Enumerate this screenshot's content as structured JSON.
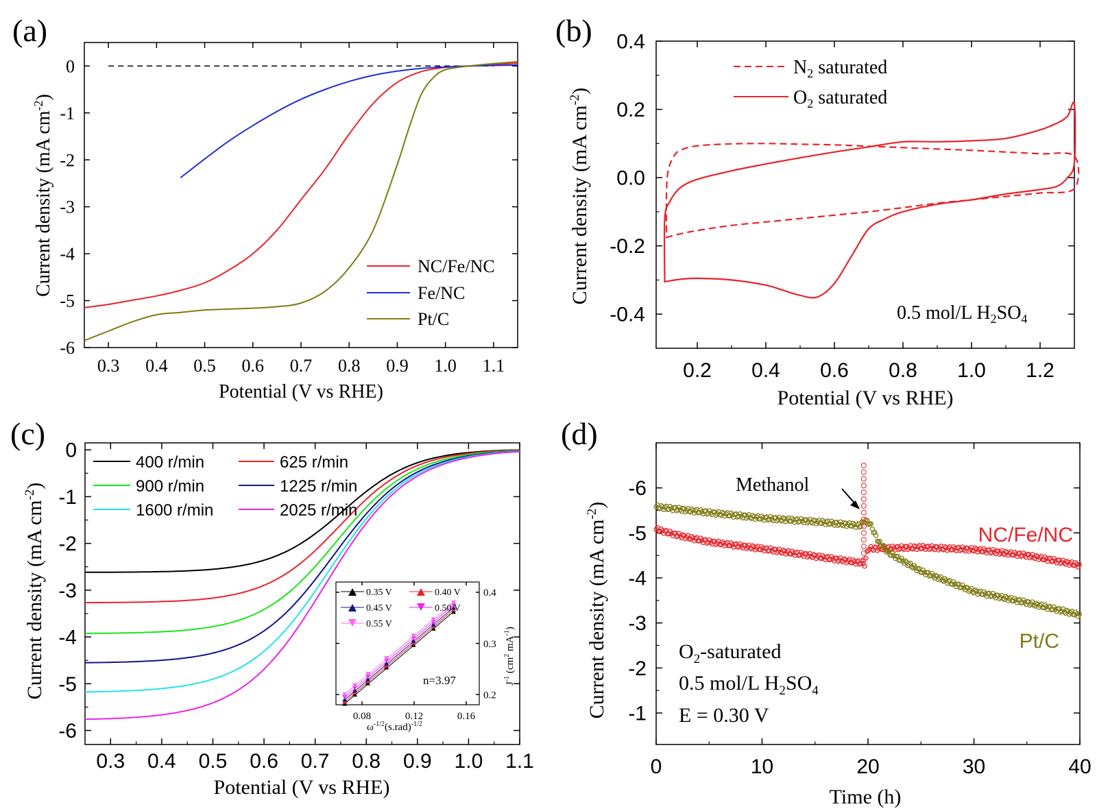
{
  "colors": {
    "ncfenc": "#e8232a",
    "fenc": "#1f2fd6",
    "ptc": "#7f7a14",
    "black": "#000000",
    "green": "#19e619",
    "navy": "#14148c",
    "cyan": "#22e3e8",
    "magenta": "#ee22ee",
    "red": "#e8232a",
    "pink": "#ff66ff"
  },
  "chart_data": [
    {
      "panel": "a",
      "panel_label": "(a)",
      "type": "line",
      "xlabel": "Potential (V vs RHE)",
      "ylabel": "Current density (mA cm",
      "ylabel_sup": "-2",
      "ylabel_close": ")",
      "xlim": [
        0.25,
        1.15
      ],
      "ylim": [
        -6,
        0.5
      ],
      "xticks": [
        0.3,
        0.4,
        0.5,
        0.6,
        0.7,
        0.8,
        0.9,
        1.0,
        1.1
      ],
      "xtick_labels": [
        "0.3",
        "0.4",
        "0.5",
        "0.6",
        "0.7",
        "0.8",
        "0.9",
        "1.0",
        "1.1"
      ],
      "yticks": [
        0,
        -1,
        -2,
        -3,
        -4,
        -5,
        -6
      ],
      "ytick_labels": [
        "0",
        "-1",
        "-2",
        "-3",
        "-4",
        "-5",
        "-6"
      ],
      "reference_line": {
        "y": 0,
        "x_range": [
          0.3,
          1.1
        ],
        "style": "dashed"
      },
      "legend_position": "bottom-right",
      "series": [
        {
          "name": "NC/Fe/NC",
          "color_key": "ncfenc",
          "x": [
            0.25,
            0.3,
            0.35,
            0.4,
            0.45,
            0.5,
            0.55,
            0.6,
            0.65,
            0.7,
            0.75,
            0.8,
            0.85,
            0.9,
            0.95,
            1.0,
            1.05,
            1.1,
            1.15
          ],
          "y": [
            -5.15,
            -5.08,
            -4.99,
            -4.9,
            -4.78,
            -4.62,
            -4.35,
            -4.0,
            -3.5,
            -2.85,
            -2.2,
            -1.45,
            -0.8,
            -0.35,
            -0.12,
            -0.03,
            0.0,
            0.03,
            0.06
          ]
        },
        {
          "name": "Fe/NC",
          "color_key": "fenc",
          "x": [
            0.45,
            0.5,
            0.55,
            0.6,
            0.65,
            0.7,
            0.75,
            0.8,
            0.85,
            0.9,
            0.95,
            1.0,
            1.05,
            1.1,
            1.15
          ],
          "y": [
            -2.38,
            -1.98,
            -1.6,
            -1.27,
            -0.97,
            -0.71,
            -0.5,
            -0.33,
            -0.2,
            -0.11,
            -0.05,
            -0.02,
            0.0,
            0.01,
            0.02
          ]
        },
        {
          "name": "Pt/C",
          "color_key": "ptc",
          "x": [
            0.25,
            0.3,
            0.35,
            0.4,
            0.45,
            0.5,
            0.55,
            0.6,
            0.65,
            0.7,
            0.75,
            0.8,
            0.85,
            0.9,
            0.925,
            0.95,
            0.975,
            1.0,
            1.05,
            1.1,
            1.15
          ],
          "y": [
            -5.85,
            -5.65,
            -5.45,
            -5.3,
            -5.25,
            -5.2,
            -5.18,
            -5.16,
            -5.13,
            -5.05,
            -4.8,
            -4.3,
            -3.5,
            -2.1,
            -1.3,
            -0.6,
            -0.25,
            -0.08,
            0.0,
            0.05,
            0.09
          ]
        }
      ]
    },
    {
      "panel": "b",
      "panel_label": "(b)",
      "type": "line",
      "xlabel": "Potential (V vs RHE)",
      "ylabel": "Current density (mA cm",
      "ylabel_sup": "-2",
      "ylabel_close": ")",
      "xlim": [
        0.08,
        1.3
      ],
      "ylim": [
        -0.5,
        0.4
      ],
      "xticks": [
        0.2,
        0.4,
        0.6,
        0.8,
        1.0,
        1.2
      ],
      "xtick_labels": [
        "0.2",
        "0.4",
        "0.6",
        "0.8",
        "1.0",
        "1.2"
      ],
      "yticks": [
        0.4,
        0.2,
        0.0,
        -0.2,
        -0.4
      ],
      "ytick_labels": [
        "0.4",
        "0.2",
        "0.0",
        "-0.2",
        "-0.4"
      ],
      "legend_position": "top-left",
      "annotation": {
        "text": "0.5 mol/L H",
        "sub1": "2",
        "mid": "SO",
        "sub2": "4"
      },
      "series": [
        {
          "name": "N",
          "name_sub": "2",
          "name_rest": " saturated",
          "style": "dashed",
          "color_key": "red",
          "x": [
            0.11,
            0.11,
            0.115,
            0.13,
            0.15,
            0.2,
            0.3,
            0.4,
            0.5,
            0.6,
            0.7,
            0.8,
            0.9,
            1.0,
            1.1,
            1.2,
            1.3,
            1.3,
            1.2,
            1.1,
            1.0,
            0.9,
            0.8,
            0.7,
            0.6,
            0.5,
            0.4,
            0.3,
            0.2,
            0.15,
            0.11
          ],
          "y": [
            -0.16,
            -0.05,
            0.02,
            0.06,
            0.08,
            0.093,
            0.099,
            0.1,
            0.098,
            0.096,
            0.092,
            0.088,
            0.084,
            0.08,
            0.075,
            0.07,
            0.063,
            -0.032,
            -0.045,
            -0.055,
            -0.065,
            -0.075,
            -0.088,
            -0.1,
            -0.11,
            -0.12,
            -0.13,
            -0.14,
            -0.155,
            -0.165,
            -0.175
          ]
        },
        {
          "name": "O",
          "name_sub": "2",
          "name_rest": " saturated",
          "style": "solid",
          "color_key": "red",
          "x": [
            0.105,
            0.105,
            0.12,
            0.15,
            0.2,
            0.3,
            0.4,
            0.5,
            0.6,
            0.7,
            0.8,
            0.9,
            1.0,
            1.1,
            1.2,
            1.25,
            1.28,
            1.3,
            1.3,
            1.28,
            1.25,
            1.2,
            1.1,
            1.0,
            0.9,
            0.8,
            0.75,
            0.7,
            0.65,
            0.6,
            0.55,
            0.5,
            0.45,
            0.4,
            0.3,
            0.2,
            0.15,
            0.105
          ],
          "y": [
            -0.3,
            -0.12,
            -0.07,
            -0.03,
            -0.005,
            0.02,
            0.04,
            0.058,
            0.075,
            0.09,
            0.105,
            0.105,
            0.108,
            0.115,
            0.14,
            0.16,
            0.18,
            0.215,
            0.045,
            0.0,
            -0.025,
            -0.035,
            -0.048,
            -0.065,
            -0.078,
            -0.1,
            -0.12,
            -0.15,
            -0.23,
            -0.31,
            -0.35,
            -0.345,
            -0.33,
            -0.315,
            -0.3,
            -0.295,
            -0.298,
            -0.305
          ]
        }
      ]
    },
    {
      "panel": "c",
      "panel_label": "(c)",
      "type": "line",
      "xlabel": "Potential (V vs RHE)",
      "ylabel": "Current density (mA cm",
      "ylabel_sup": "-2",
      "ylabel_close": ")",
      "xlim": [
        0.25,
        1.1
      ],
      "ylim": [
        -6.3,
        0.15
      ],
      "xticks": [
        0.3,
        0.4,
        0.5,
        0.6,
        0.7,
        0.8,
        0.9,
        1.0,
        1.1
      ],
      "xtick_labels": [
        "0.3",
        "0.4",
        "0.5",
        "0.6",
        "0.7",
        "0.8",
        "0.9",
        "1.0",
        "1.1"
      ],
      "yticks": [
        0,
        -1,
        -2,
        -3,
        -4,
        -5,
        -6
      ],
      "ytick_labels": [
        "0",
        "-1",
        "-2",
        "-3",
        "-4",
        "-5",
        "-6"
      ],
      "legend_position": "top-left",
      "series": [
        {
          "name": "400 r/min",
          "color_key": "black",
          "limit": -2.62,
          "half": 0.755,
          "width": 0.07
        },
        {
          "name": "625 r/min",
          "color_key": "red",
          "limit": -3.27,
          "half": 0.748,
          "width": 0.072
        },
        {
          "name": "900 r/min",
          "color_key": "green",
          "limit": -3.93,
          "half": 0.742,
          "width": 0.075
        },
        {
          "name": "1225 r/min",
          "color_key": "navy",
          "limit": -4.56,
          "half": 0.735,
          "width": 0.078
        },
        {
          "name": "1600 r/min",
          "color_key": "cyan",
          "limit": -5.19,
          "half": 0.727,
          "width": 0.08
        },
        {
          "name": "2025 r/min",
          "color_key": "magenta",
          "limit": -5.78,
          "half": 0.72,
          "width": 0.082
        }
      ],
      "inset": {
        "type": "line",
        "xlabel": "ω",
        "xlabel_sup": "-1/2",
        "xlabel_mid": "(s.rad)",
        "xlabel_sup2": "-1/2",
        "ylabel": "J",
        "ylabel_sup": "-1",
        "ylabel_mid": " (cm",
        "ylabel_sup2": "2",
        "ylabel_mid2": " mA",
        "ylabel_sup3": "-1",
        "ylabel_close": ")",
        "xlim": [
          0.06,
          0.17
        ],
        "ylim": [
          0.18,
          0.42
        ],
        "xticks": [
          0.08,
          0.12,
          0.16
        ],
        "xtick_labels": [
          "0.08",
          "0.12",
          "0.16"
        ],
        "yticks": [
          0.2,
          0.3,
          0.4
        ],
        "ytick_labels": [
          "0.2",
          "0.3",
          "0.4"
        ],
        "annotation": "n=3.97",
        "x": [
          0.0667,
          0.0745,
          0.0845,
          0.0988,
          0.1195,
          0.1348,
          0.1503
        ],
        "series": [
          {
            "name": "0.35 V",
            "color_key": "black",
            "marker": "up",
            "y": [
              0.182,
              0.2,
              0.222,
              0.253,
              0.297,
              0.329,
              0.362
            ]
          },
          {
            "name": "0.40 V",
            "color_key": "red",
            "marker": "up",
            "y": [
              0.186,
              0.204,
              0.226,
              0.257,
              0.301,
              0.333,
              0.366
            ]
          },
          {
            "name": "0.45 V",
            "color_key": "navy",
            "marker": "up",
            "y": [
              0.19,
              0.208,
              0.23,
              0.261,
              0.305,
              0.337,
              0.37
            ]
          },
          {
            "name": "0.50 V",
            "color_key": "magenta",
            "marker": "down",
            "y": [
              0.195,
              0.213,
              0.235,
              0.266,
              0.31,
              0.342,
              0.375
            ]
          },
          {
            "name": "0.55 V",
            "color_key": "pink",
            "marker": "down",
            "y": [
              0.2,
              0.218,
              0.24,
              0.271,
              0.315,
              0.347,
              0.38
            ]
          }
        ]
      }
    },
    {
      "panel": "d",
      "panel_label": "(d)",
      "type": "scatter",
      "xlabel": "Time (h)",
      "ylabel": "Current density (mA cm",
      "ylabel_sup": "-2",
      "ylabel_close": ")",
      "xlim": [
        0,
        40
      ],
      "ylim": [
        -7,
        -0.3
      ],
      "y_axis_reversed": true,
      "xticks": [
        0,
        10,
        20,
        30,
        40
      ],
      "xtick_labels": [
        "0",
        "10",
        "20",
        "30",
        "40"
      ],
      "yticks": [
        -6,
        -5,
        -4,
        -3,
        -2,
        -1
      ],
      "ytick_labels": [
        "-6",
        "-5",
        "-4",
        "-3",
        "-2",
        "-1"
      ],
      "conditions": [
        {
          "pre": "O",
          "sub": "2",
          "post": "-saturated"
        },
        {
          "pre": "0.5 mol/L H",
          "sub": "2",
          "post": "SO",
          "sub2": "4"
        },
        {
          "pre": "E = 0.30 V"
        }
      ],
      "annotation": {
        "text": "Methanol",
        "x": 19.7,
        "y": -5.35
      },
      "series": [
        {
          "name": "NC/Fe/NC",
          "color_key": "ncfenc",
          "x": [
            0,
            2,
            5,
            10,
            15,
            19.5,
            19.7,
            20,
            25,
            30,
            35,
            40
          ],
          "y": [
            -5.08,
            -4.95,
            -4.8,
            -4.65,
            -4.48,
            -4.33,
            -4.3,
            -4.65,
            -4.68,
            -4.63,
            -4.5,
            -4.28
          ]
        },
        {
          "name": "Pt/C",
          "color_key": "ptc",
          "x": [
            0,
            5,
            10,
            15,
            19.3,
            19.7,
            20.2,
            21,
            22,
            25,
            30,
            35,
            40
          ],
          "y": [
            -5.58,
            -5.45,
            -5.33,
            -5.25,
            -5.16,
            -5.28,
            -5.2,
            -4.8,
            -4.55,
            -4.15,
            -3.7,
            -3.45,
            -3.18
          ]
        },
        {
          "name": "methanol spike",
          "color_key": "ncfenc",
          "x": [
            19.6,
            19.6,
            19.6,
            19.6,
            19.6,
            19.6,
            19.6,
            19.6,
            19.6,
            19.6,
            19.6,
            19.6,
            19.6,
            19.6,
            19.6
          ],
          "y": [
            -6.5,
            -6.35,
            -6.2,
            -6.05,
            -5.9,
            -5.75,
            -5.6,
            -5.45,
            -5.3,
            -5.15,
            -5.0,
            -4.85,
            -4.7,
            -4.55,
            -4.4
          ]
        }
      ]
    }
  ]
}
